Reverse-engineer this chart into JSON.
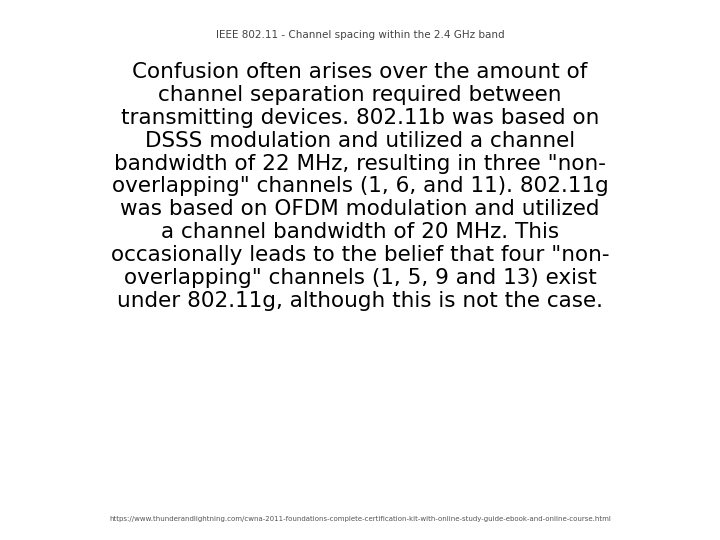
{
  "title": "IEEE 802.11 - Channel spacing within the 2.4 GHz band",
  "title_fontsize": 7.5,
  "title_color": "#444444",
  "body_lines": [
    "Confusion often arises over the amount of",
    "channel separation required between",
    "transmitting devices. 802.11b was based on",
    "DSSS modulation and utilized a channel",
    "bandwidth of 22 MHz, resulting in three \"non-",
    "overlapping\" channels (1, 6, and 11). 802.11g",
    "was based on OFDM modulation and utilized",
    "a channel bandwidth of 20 MHz. This",
    "occasionally leads to the belief that four \"non-",
    "overlapping\" channels (1, 5, 9 and 13) exist",
    "under 802.11g, although this is not the case."
  ],
  "body_fontsize": 15.5,
  "body_color": "#000000",
  "footer_text": "https://www.thunderandlightning.com/cwna-2011-foundations-complete-certification-kit-with-online-study-guide-ebook-and-online-course.html",
  "footer_fontsize": 5.0,
  "footer_color": "#555555",
  "background_color": "#ffffff",
  "fig_width": 7.2,
  "fig_height": 5.4,
  "dpi": 100
}
